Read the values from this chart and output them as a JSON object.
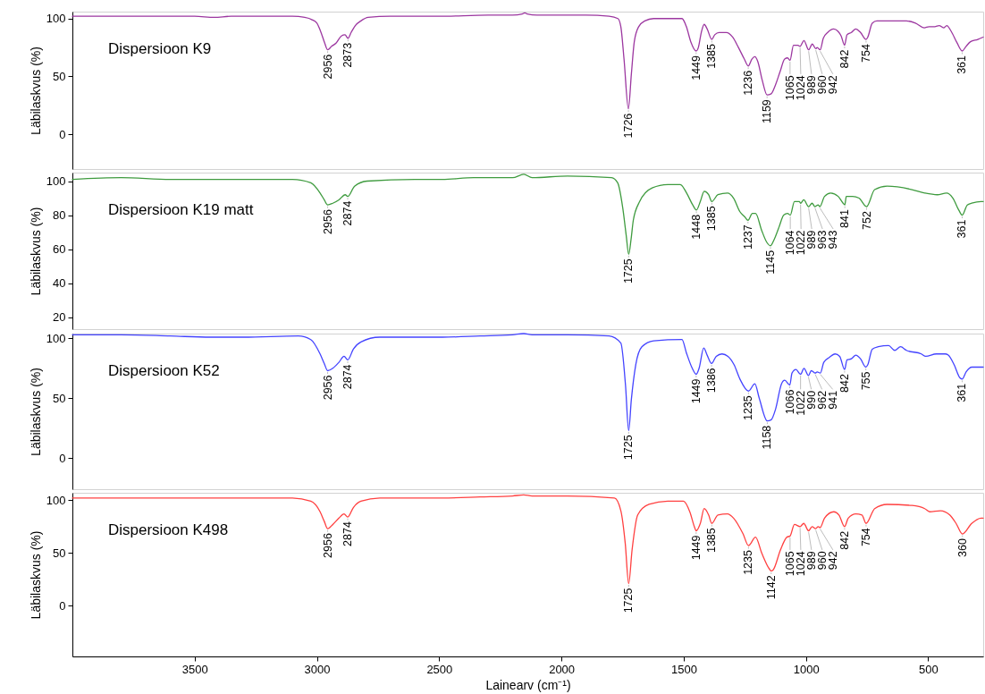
{
  "chart_data": [
    {
      "type": "line",
      "xlim": [
        4000,
        275
      ],
      "ylim": [
        -30,
        106
      ],
      "yticks": [
        0,
        50,
        100
      ],
      "ylabel": "Läbilaskvus (%)",
      "tick_labels": "y",
      "x": [
        4000,
        3850,
        3700,
        3500,
        3420,
        3350,
        3200,
        3100,
        3050,
        3020,
        3000,
        2985,
        2970,
        2956,
        2940,
        2921,
        2900,
        2885,
        2873,
        2860,
        2843,
        2820,
        2790,
        2700,
        2500,
        2300,
        2200,
        2160,
        2150,
        2140,
        2100,
        2000,
        1900,
        1805,
        1769,
        1757,
        1744,
        1726,
        1714,
        1702,
        1684,
        1659,
        1623,
        1562,
        1507,
        1489,
        1471,
        1449,
        1440,
        1428,
        1416,
        1404,
        1385,
        1373,
        1355,
        1325,
        1300,
        1276,
        1252,
        1236,
        1221,
        1209,
        1197,
        1179,
        1159,
        1142,
        1124,
        1106,
        1087,
        1075,
        1065,
        1051,
        1033,
        1024,
        1008,
        989,
        974,
        960,
        954,
        942,
        929,
        911,
        887,
        869,
        856,
        842,
        832,
        814,
        796,
        777,
        754,
        747,
        729,
        710,
        650,
        589,
        552,
        516,
        497,
        473,
        455,
        437,
        424,
        406,
        382,
        361,
        345,
        327,
        297,
        275
      ],
      "series": [
        {
          "name": "Dispersioon K9",
          "color": "#9c37a0",
          "values": [
            102,
            102,
            102,
            102,
            101,
            102,
            102,
            102,
            101,
            99,
            96,
            89,
            80,
            73,
            76,
            79,
            85,
            86,
            83,
            88,
            94,
            98,
            101,
            102,
            102,
            103,
            103,
            104,
            105,
            104,
            103,
            103,
            103,
            102,
            100,
            93,
            65,
            22,
            52,
            80,
            93,
            98,
            100,
            100,
            100,
            93,
            80,
            72,
            75,
            88,
            95,
            91,
            82,
            86,
            88,
            88,
            84,
            75,
            65,
            59,
            65,
            67,
            63,
            47,
            34,
            35,
            43,
            54,
            65,
            66,
            64,
            77,
            77,
            76,
            81,
            73,
            78,
            74,
            75,
            73,
            83,
            88,
            91,
            89,
            85,
            77,
            86,
            88,
            91,
            88,
            82,
            84,
            96,
            98,
            98,
            98,
            96,
            92,
            93,
            93,
            94,
            92,
            94,
            89,
            79,
            72,
            76,
            80,
            82,
            84
          ]
        }
      ],
      "annotations": [
        {
          "text": "2956",
          "x": 2956,
          "y": 73
        },
        {
          "text": "2873",
          "x": 2873,
          "y": 83
        },
        {
          "text": "1726",
          "x": 1726,
          "y": 22
        },
        {
          "text": "1449",
          "x": 1449,
          "y": 72
        },
        {
          "text": "1385",
          "x": 1385,
          "y": 82
        },
        {
          "text": "1236",
          "x": 1236,
          "y": 59
        },
        {
          "text": "1159",
          "x": 1159,
          "y": 34
        },
        {
          "text": "1065",
          "x": 1065,
          "y": 64
        },
        {
          "text": "1024",
          "x": 1024,
          "y": 76
        },
        {
          "text": "989",
          "x": 989,
          "y": 73
        },
        {
          "text": "960",
          "x": 960,
          "y": 74
        },
        {
          "text": "942",
          "x": 942,
          "y": 73
        },
        {
          "text": "842",
          "x": 842,
          "y": 77
        },
        {
          "text": "754",
          "x": 754,
          "y": 82
        },
        {
          "text": "361",
          "x": 361,
          "y": 72
        }
      ]
    },
    {
      "type": "line",
      "xlim": [
        4000,
        275
      ],
      "ylim": [
        13,
        105
      ],
      "yticks": [
        20,
        40,
        60,
        80,
        100
      ],
      "ylabel": "Läbilaskvus (%)",
      "tick_labels": "y",
      "x": [
        4000,
        3800,
        3600,
        3435,
        3300,
        3100,
        3025,
        2987,
        2970,
        2956,
        2935,
        2910,
        2884,
        2874,
        2846,
        2795,
        2600,
        2487,
        2359,
        2200,
        2154,
        2120,
        1975,
        1795,
        1770,
        1749,
        1735,
        1725,
        1715,
        1706,
        1680,
        1629,
        1565,
        1514,
        1488,
        1463,
        1448,
        1432,
        1416,
        1398,
        1385,
        1360,
        1321,
        1296,
        1270,
        1250,
        1237,
        1219,
        1206,
        1181,
        1160,
        1145,
        1129,
        1110,
        1091,
        1075,
        1064,
        1047,
        1027,
        1022,
        1009,
        989,
        975,
        963,
        950,
        943,
        924,
        899,
        868,
        848,
        841,
        835,
        809,
        783,
        752,
        719,
        668,
        566,
        514,
        463,
        425,
        399,
        375,
        361,
        340,
        322,
        284,
        275
      ],
      "series": [
        {
          "name": "Dispersioon K19 matt",
          "color": "#3f9b3f",
          "values": [
            101,
            102,
            101,
            101,
            101,
            101,
            99,
            93,
            89,
            86,
            87,
            89,
            92,
            91,
            97,
            100,
            101,
            101,
            102,
            102,
            104,
            102,
            103,
            102,
            99,
            84,
            68,
            57,
            66,
            77,
            88,
            96,
            98,
            98,
            93,
            86,
            83,
            88,
            94,
            92,
            88,
            92,
            93,
            90,
            82,
            79,
            77,
            81,
            81,
            71,
            64,
            62,
            66,
            73,
            80,
            81,
            80,
            88,
            88,
            87,
            89,
            85,
            87,
            85,
            86,
            85,
            91,
            93,
            91,
            87,
            86,
            91,
            91,
            90,
            85,
            95,
            97,
            95,
            93,
            92,
            93,
            90,
            83,
            80,
            86,
            87,
            88,
            88
          ]
        }
      ],
      "annotations": [
        {
          "text": "2956",
          "x": 2956,
          "y": 86
        },
        {
          "text": "2874",
          "x": 2874,
          "y": 91
        },
        {
          "text": "1725",
          "x": 1725,
          "y": 57
        },
        {
          "text": "1448",
          "x": 1448,
          "y": 83
        },
        {
          "text": "1385",
          "x": 1385,
          "y": 88
        },
        {
          "text": "1237",
          "x": 1237,
          "y": 77
        },
        {
          "text": "1145",
          "x": 1145,
          "y": 62
        },
        {
          "text": "1064",
          "x": 1064,
          "y": 80
        },
        {
          "text": "1022",
          "x": 1022,
          "y": 87
        },
        {
          "text": "989",
          "x": 989,
          "y": 85
        },
        {
          "text": "963",
          "x": 963,
          "y": 85
        },
        {
          "text": "943",
          "x": 943,
          "y": 85
        },
        {
          "text": "841",
          "x": 841,
          "y": 86
        },
        {
          "text": "752",
          "x": 752,
          "y": 85
        },
        {
          "text": "361",
          "x": 361,
          "y": 80
        }
      ]
    },
    {
      "type": "line",
      "xlim": [
        4000,
        275
      ],
      "ylim": [
        -26,
        104
      ],
      "yticks": [
        0,
        50,
        100
      ],
      "ylabel": "Läbilaskvus (%)",
      "tick_labels": "y",
      "x": [
        4000,
        3800,
        3600,
        3435,
        3300,
        3076,
        3025,
        2987,
        2970,
        2956,
        2935,
        2910,
        2889,
        2874,
        2851,
        2820,
        2743,
        2487,
        2333,
        2200,
        2154,
        2120,
        1975,
        1805,
        1757,
        1738,
        1725,
        1714,
        1696,
        1671,
        1623,
        1507,
        1489,
        1465,
        1449,
        1437,
        1418,
        1404,
        1386,
        1367,
        1343,
        1319,
        1294,
        1270,
        1235,
        1209,
        1191,
        1158,
        1142,
        1124,
        1100,
        1087,
        1066,
        1057,
        1041,
        1022,
        1008,
        990,
        978,
        962,
        954,
        941,
        927,
        905,
        881,
        862,
        842,
        832,
        814,
        796,
        777,
        755,
        747,
        729,
        704,
        662,
        637,
        613,
        589,
        528,
        510,
        467,
        431,
        418,
        394,
        370,
        361,
        345,
        321,
        275
      ],
      "series": [
        {
          "name": "Dispersioon K52",
          "color": "#4444ff",
          "values": [
            103,
            103,
            102,
            101,
            101,
            102,
            99,
            87,
            79,
            73,
            75,
            80,
            85,
            82,
            91,
            97,
            101,
            101,
            102,
            103,
            104,
            103,
            103,
            102,
            96,
            61,
            23,
            49,
            78,
            93,
            98,
            99,
            88,
            75,
            70,
            75,
            92,
            86,
            79,
            85,
            87,
            85,
            78,
            66,
            56,
            62,
            50,
            31,
            32,
            41,
            62,
            65,
            61,
            71,
            74,
            70,
            75,
            69,
            73,
            71,
            72,
            71,
            80,
            84,
            87,
            85,
            74,
            82,
            83,
            86,
            83,
            76,
            78,
            91,
            93,
            94,
            90,
            93,
            90,
            87,
            85,
            87,
            87,
            86,
            78,
            67,
            66,
            72,
            76,
            76
          ]
        }
      ],
      "annotations": [
        {
          "text": "2956",
          "x": 2956,
          "y": 73
        },
        {
          "text": "2874",
          "x": 2874,
          "y": 82
        },
        {
          "text": "1725",
          "x": 1725,
          "y": 23
        },
        {
          "text": "1449",
          "x": 1449,
          "y": 70
        },
        {
          "text": "1386",
          "x": 1386,
          "y": 79
        },
        {
          "text": "1235",
          "x": 1235,
          "y": 56
        },
        {
          "text": "1158",
          "x": 1158,
          "y": 31
        },
        {
          "text": "1066",
          "x": 1066,
          "y": 61
        },
        {
          "text": "1022",
          "x": 1022,
          "y": 70
        },
        {
          "text": "990",
          "x": 990,
          "y": 69
        },
        {
          "text": "962",
          "x": 962,
          "y": 71
        },
        {
          "text": "941",
          "x": 941,
          "y": 71
        },
        {
          "text": "842",
          "x": 842,
          "y": 74
        },
        {
          "text": "755",
          "x": 755,
          "y": 76
        },
        {
          "text": "361",
          "x": 361,
          "y": 66
        }
      ]
    },
    {
      "type": "line",
      "xlim": [
        4000,
        275
      ],
      "ylim": [
        -48,
        107
      ],
      "xticks": [
        3500,
        3000,
        2500,
        2000,
        1500,
        1000,
        500
      ],
      "yticks": [
        0,
        50,
        100
      ],
      "xlabel": "Lainearv (cm⁻¹)",
      "ylabel": "Läbilaskvus (%)",
      "x": [
        4000,
        3800,
        3600,
        3435,
        3300,
        3100,
        3025,
        2987,
        2970,
        2956,
        2935,
        2910,
        2889,
        2874,
        2851,
        2820,
        2743,
        2487,
        2333,
        2200,
        2154,
        2120,
        1975,
        1783,
        1757,
        1739,
        1725,
        1711,
        1688,
        1642,
        1565,
        1501,
        1475,
        1455,
        1449,
        1432,
        1416,
        1398,
        1385,
        1360,
        1321,
        1296,
        1257,
        1235,
        1206,
        1181,
        1150,
        1142,
        1134,
        1104,
        1078,
        1065,
        1047,
        1024,
        1009,
        989,
        975,
        960,
        950,
        942,
        924,
        886,
        865,
        842,
        827,
        796,
        771,
        754,
        719,
        668,
        566,
        514,
        494,
        450,
        412,
        386,
        360,
        322,
        284,
        275
      ],
      "series": [
        {
          "name": "Dispersioon K498",
          "color": "#ff4040",
          "values": [
            102,
            102,
            102,
            102,
            102,
            102,
            99,
            89,
            80,
            73,
            77,
            83,
            87,
            84,
            93,
            99,
            102,
            102,
            103,
            104,
            105,
            104,
            104,
            102,
            90,
            59,
            21,
            53,
            86,
            96,
            99,
            99,
            89,
            74,
            71,
            78,
            92,
            86,
            78,
            86,
            87,
            83,
            68,
            57,
            65,
            50,
            35,
            33,
            34,
            53,
            65,
            66,
            77,
            75,
            78,
            71,
            75,
            73,
            75,
            74,
            83,
            89,
            86,
            75,
            83,
            87,
            86,
            78,
            92,
            96,
            95,
            92,
            89,
            90,
            86,
            78,
            68,
            78,
            83,
            83
          ]
        }
      ],
      "annotations": [
        {
          "text": "2956",
          "x": 2956,
          "y": 73
        },
        {
          "text": "2874",
          "x": 2874,
          "y": 84
        },
        {
          "text": "1725",
          "x": 1725,
          "y": 21
        },
        {
          "text": "1449",
          "x": 1449,
          "y": 71
        },
        {
          "text": "1385",
          "x": 1385,
          "y": 78
        },
        {
          "text": "1235",
          "x": 1235,
          "y": 57
        },
        {
          "text": "1142",
          "x": 1142,
          "y": 33
        },
        {
          "text": "1065",
          "x": 1065,
          "y": 66
        },
        {
          "text": "1024",
          "x": 1024,
          "y": 75
        },
        {
          "text": "989",
          "x": 989,
          "y": 71
        },
        {
          "text": "960",
          "x": 960,
          "y": 73
        },
        {
          "text": "942",
          "x": 942,
          "y": 74
        },
        {
          "text": "842",
          "x": 842,
          "y": 75
        },
        {
          "text": "754",
          "x": 754,
          "y": 78
        },
        {
          "text": "360",
          "x": 360,
          "y": 68
        }
      ]
    }
  ]
}
